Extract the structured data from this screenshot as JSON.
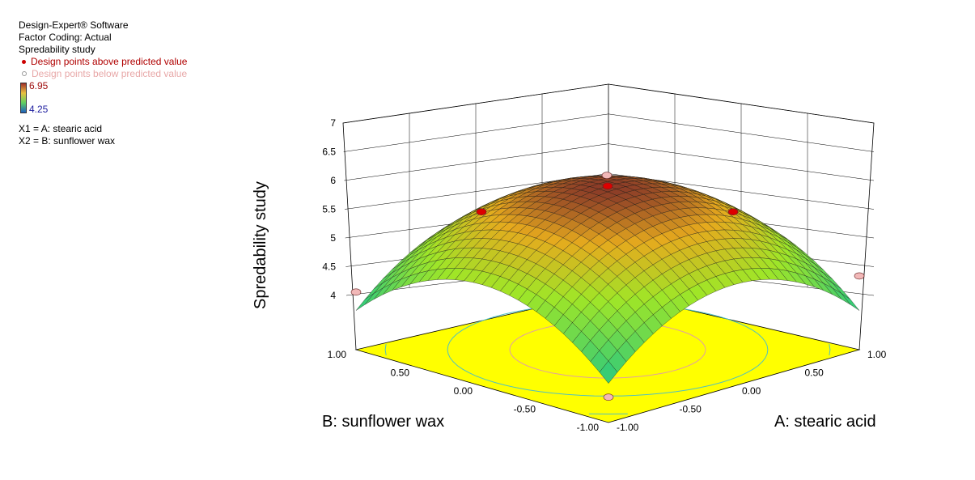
{
  "legend": {
    "software": "Design-Expert® Software",
    "coding": "Factor Coding: Actual",
    "response": "Spredability study",
    "above_label": "Design points above predicted value",
    "below_label": "Design points below predicted value",
    "color_max": "6.95",
    "color_min": "4.25",
    "x1": "X1 = A: stearic acid",
    "x2": "X2 = B: sunflower wax"
  },
  "chart_data": {
    "type": "surface3d",
    "title": "",
    "zlabel": "Spredability study",
    "xlabel": "A: stearic acid",
    "ylabel": "B: sunflower wax",
    "zlim": [
      4,
      7
    ],
    "z_ticks": [
      "4",
      "4.5",
      "5",
      "5.5",
      "6",
      "6.5",
      "7"
    ],
    "x_ticks": [
      "-1.00",
      "-0.50",
      "0.00",
      "0.50",
      "1.00"
    ],
    "y_ticks": [
      "-1.00",
      "-0.50",
      "0.00",
      "0.50",
      "1.00"
    ],
    "surface": {
      "z_center": 6.95,
      "z_corner": 4.25
    },
    "design_points": [
      {
        "A": 0,
        "B": 0,
        "z": 6.95,
        "type": "above"
      },
      {
        "A": 1,
        "B": 0,
        "z": 5.6,
        "type": "above"
      },
      {
        "A": 0,
        "B": 1,
        "z": 5.6,
        "type": "above"
      },
      {
        "A": -1,
        "B": -1,
        "z": 3.95,
        "type": "below"
      },
      {
        "A": -1,
        "B": 1,
        "z": 4.65,
        "type": "below"
      },
      {
        "A": 1,
        "B": -1,
        "z": 5.0,
        "type": "below"
      },
      {
        "A": 1,
        "B": 1,
        "z": 5.6,
        "type": "below"
      }
    ],
    "colors": {
      "above": "#dd0000",
      "below": "#f2b8b8",
      "floor": "#ffff00"
    }
  }
}
